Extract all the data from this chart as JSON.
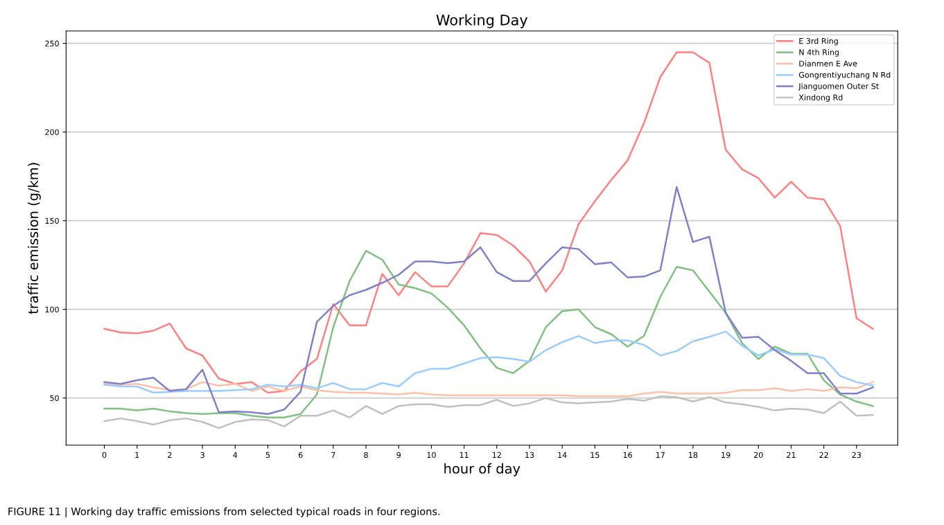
{
  "chart_data": {
    "type": "line",
    "title": "Working Day",
    "xlabel": "hour of day",
    "ylabel": "traffic emission (g/km)",
    "x": [
      0,
      0.5,
      1,
      1.5,
      2,
      2.5,
      3,
      3.5,
      4,
      4.5,
      5,
      5.5,
      6,
      6.5,
      7,
      7.5,
      8,
      8.5,
      9,
      9.5,
      10,
      10.5,
      11,
      11.5,
      12,
      12.5,
      13,
      13.5,
      14,
      14.5,
      15,
      15.5,
      16,
      16.5,
      17,
      17.5,
      18,
      18.5,
      19,
      19.5,
      20,
      20.5,
      21,
      21.5,
      22,
      22.5,
      23,
      23.5
    ],
    "series": [
      {
        "name": "E 3rd Ring",
        "color": "#ff8080",
        "values": [
          89,
          87,
          86.5,
          88,
          92,
          78,
          74,
          61,
          58,
          59,
          53,
          54,
          65,
          72,
          103,
          91,
          91,
          120,
          108,
          121,
          113,
          113,
          126,
          143,
          142,
          136,
          127,
          110,
          122,
          148,
          161,
          173,
          184,
          205,
          231,
          245,
          245,
          239,
          190,
          179,
          174,
          163,
          172,
          163,
          162,
          147,
          95,
          89
        ]
      },
      {
        "name": "N 4th Ring",
        "color": "#80c080",
        "values": [
          44,
          44,
          43,
          44,
          42.5,
          41.5,
          41,
          41.5,
          41.5,
          40,
          39,
          39,
          41,
          52,
          90,
          116,
          133,
          128,
          114,
          112,
          109,
          101,
          91,
          78,
          67,
          64,
          71,
          90,
          99,
          100,
          90,
          86,
          79,
          85,
          107,
          124,
          122,
          110,
          98,
          81,
          72,
          79,
          75,
          75,
          60,
          52,
          48,
          45.5
        ]
      },
      {
        "name": "Dianmen E Ave",
        "color": "#ffc0a8",
        "values": [
          58,
          57.5,
          58,
          56,
          54.5,
          55,
          59,
          57,
          58,
          54,
          56.5,
          54,
          56.5,
          54.5,
          53.5,
          53,
          53,
          52.5,
          52,
          53,
          52,
          51.5,
          51.5,
          51.5,
          51.5,
          51.5,
          51.5,
          51.5,
          51.5,
          51,
          51,
          51,
          51,
          52.5,
          53.5,
          52.5,
          52.5,
          52.5,
          53,
          54.5,
          54.5,
          55.5,
          54,
          55,
          54,
          56,
          55.5,
          59
        ]
      },
      {
        "name": "Gongrentiyuchang N Rd",
        "color": "#99ccff",
        "values": [
          57.5,
          56.5,
          56.5,
          53,
          53.5,
          54,
          54,
          54,
          54.5,
          55,
          57.5,
          56.5,
          57.5,
          55.5,
          58.5,
          55,
          55,
          58.5,
          56.5,
          64,
          66.5,
          66.5,
          69.5,
          72.5,
          73,
          72,
          70.5,
          77,
          81.5,
          85,
          81,
          82.5,
          82.5,
          80,
          74,
          76.5,
          82,
          84.5,
          87.5,
          79.5,
          74,
          77.5,
          74.5,
          74.5,
          72.5,
          62.5,
          59,
          57
        ]
      },
      {
        "name": "Jianguomen Outer St",
        "color": "#8080cc",
        "values": [
          59,
          58,
          60,
          61.5,
          54,
          55,
          66,
          42,
          42.5,
          42,
          41,
          43.5,
          53.5,
          93,
          102,
          108,
          111,
          115,
          119.5,
          127,
          127,
          126,
          127,
          135,
          121,
          116,
          116,
          126,
          135,
          134,
          125.5,
          126.5,
          118,
          118.5,
          122,
          169,
          138,
          141,
          98,
          84,
          84.5,
          77,
          71,
          64,
          64,
          52.5,
          52.5,
          56
        ]
      },
      {
        "name": "Xindong Rd",
        "color": "#c0c0c0",
        "values": [
          37,
          38.5,
          37,
          35,
          37.5,
          38.5,
          36.5,
          33,
          36.5,
          38,
          37.5,
          34,
          40,
          40,
          43,
          39,
          45.5,
          41,
          45.5,
          46.5,
          46.5,
          45,
          46,
          46,
          49,
          45.5,
          47,
          50,
          47.5,
          47,
          47.5,
          48,
          49.5,
          48.5,
          51,
          50.5,
          48,
          50.5,
          47.5,
          46.5,
          45,
          43,
          44,
          43.5,
          41.5,
          48,
          40,
          40.5
        ]
      }
    ],
    "xlim": [
      -1.17,
      24.26
    ],
    "xticks": [
      0,
      1,
      2,
      3,
      4,
      5,
      6,
      7,
      8,
      9,
      10,
      11,
      12,
      13,
      14,
      15,
      16,
      17,
      18,
      19,
      20,
      21,
      22,
      23
    ],
    "ylim": [
      23.4,
      257
    ],
    "yticks": [
      50,
      100,
      150,
      200,
      250
    ],
    "grid": "y",
    "legend": "top right",
    "annotations": [
      "FIGURE 11 | Working day traffic emissions from selected typical roads in four regions."
    ]
  }
}
